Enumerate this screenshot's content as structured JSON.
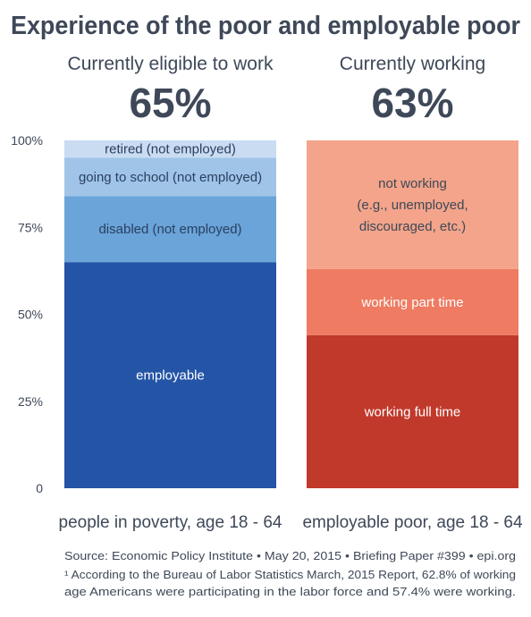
{
  "title": "Experience of the poor and employable poor",
  "footer": {
    "source": "Source: Economic Policy Institute •  May 20, 2015 • Briefing Paper #399 • epi.org",
    "footnote_line1": "¹ According to the Bureau of Labor Statistics March, 2015 Report, 62.8% of working",
    "footnote_line2": "age Americans were participating in the labor force and 57.4% were working."
  },
  "colors": {
    "title": "#3e4858",
    "axis_text": "#3e4858",
    "employable": "#2354a6",
    "disabled": "#6aa4d9",
    "going_to_school": "#9fc4e8",
    "retired": "#c9dcf2",
    "working_full_time": "#c0392b",
    "working_part_time": "#ee7b62",
    "not_working": "#f3a48a"
  },
  "chart_data": {
    "type": "bar",
    "stacked": true,
    "ylim": [
      0,
      100
    ],
    "yticks": [
      {
        "value": 0,
        "label": "0"
      },
      {
        "value": 25,
        "label": "25%"
      },
      {
        "value": 50,
        "label": "50%"
      },
      {
        "value": 75,
        "label": "75%"
      },
      {
        "value": 100,
        "label": "100%"
      }
    ],
    "grid": false,
    "bars": [
      {
        "category": "people in poverty, age 18 - 64",
        "header": "Currently eligible to work",
        "big_value": "65%",
        "segments": [
          {
            "label": "employable",
            "value": 65,
            "color": "#2354a6",
            "text_color": "#ffffff"
          },
          {
            "label": "disabled (not employed)",
            "value": 19,
            "color": "#6aa4d9",
            "text_color": "#2a3f5f"
          },
          {
            "label": "going to school (not employed)",
            "value": 11,
            "color": "#9fc4e8",
            "text_color": "#2a3f5f"
          },
          {
            "label": "retired (not employed)",
            "value": 5,
            "color": "#c9dcf2",
            "text_color": "#2a3f5f"
          }
        ]
      },
      {
        "category": "employable poor, age 18 - 64",
        "header": "Currently working",
        "big_value": "63%",
        "segments": [
          {
            "label": "working full time",
            "value": 44,
            "color": "#c0392b",
            "text_color": "#ffffff"
          },
          {
            "label": "working part time",
            "value": 19,
            "color": "#ee7b62",
            "text_color": "#ffffff"
          },
          {
            "label": "not working\n(e.g., unemployed,\ndiscouraged, etc.)",
            "value": 37,
            "color": "#f3a48a",
            "text_color": "#3e4858"
          }
        ]
      }
    ]
  }
}
